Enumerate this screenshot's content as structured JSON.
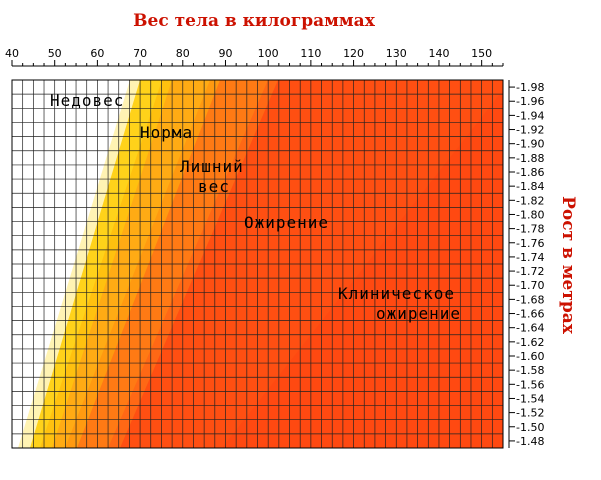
{
  "chart_data": {
    "type": "heatmap",
    "title": "Вес тела в килограммах",
    "ylabel": "Рост в метрах",
    "x_ticks": [
      40,
      50,
      60,
      70,
      80,
      90,
      100,
      110,
      120,
      130,
      140,
      150
    ],
    "xlim": [
      40,
      155
    ],
    "y_ticks": [
      "1.98",
      "1.96",
      "1.94",
      "1.92",
      "1.90",
      "1.88",
      "1.86",
      "1.84",
      "1.82",
      "1.80",
      "1.78",
      "1.76",
      "1.74",
      "1.72",
      "1.70",
      "1.68",
      "1.66",
      "1.64",
      "1.62",
      "1.60",
      "1.58",
      "1.56",
      "1.54",
      "1.52",
      "1.50",
      "1.48"
    ],
    "ylim": [
      1.47,
      1.99
    ],
    "grid": true,
    "zones": [
      {
        "label": [
          "Недовес"
        ],
        "color": "#ffffff"
      },
      {
        "label": [
          "Норма"
        ],
        "color": "#ffd21a"
      },
      {
        "label": [
          "Лишний",
          "вес"
        ],
        "color": "#ffab14"
      },
      {
        "label": [
          "Ожирение"
        ],
        "color": "#ff7a14"
      },
      {
        "label": [
          "Клиническое",
          "ожирение"
        ],
        "color": "#ff4f12"
      }
    ],
    "boundary_colors": [
      "#fff3b3",
      "#ffc10f",
      "#ff9a10",
      "#ff6815"
    ]
  }
}
